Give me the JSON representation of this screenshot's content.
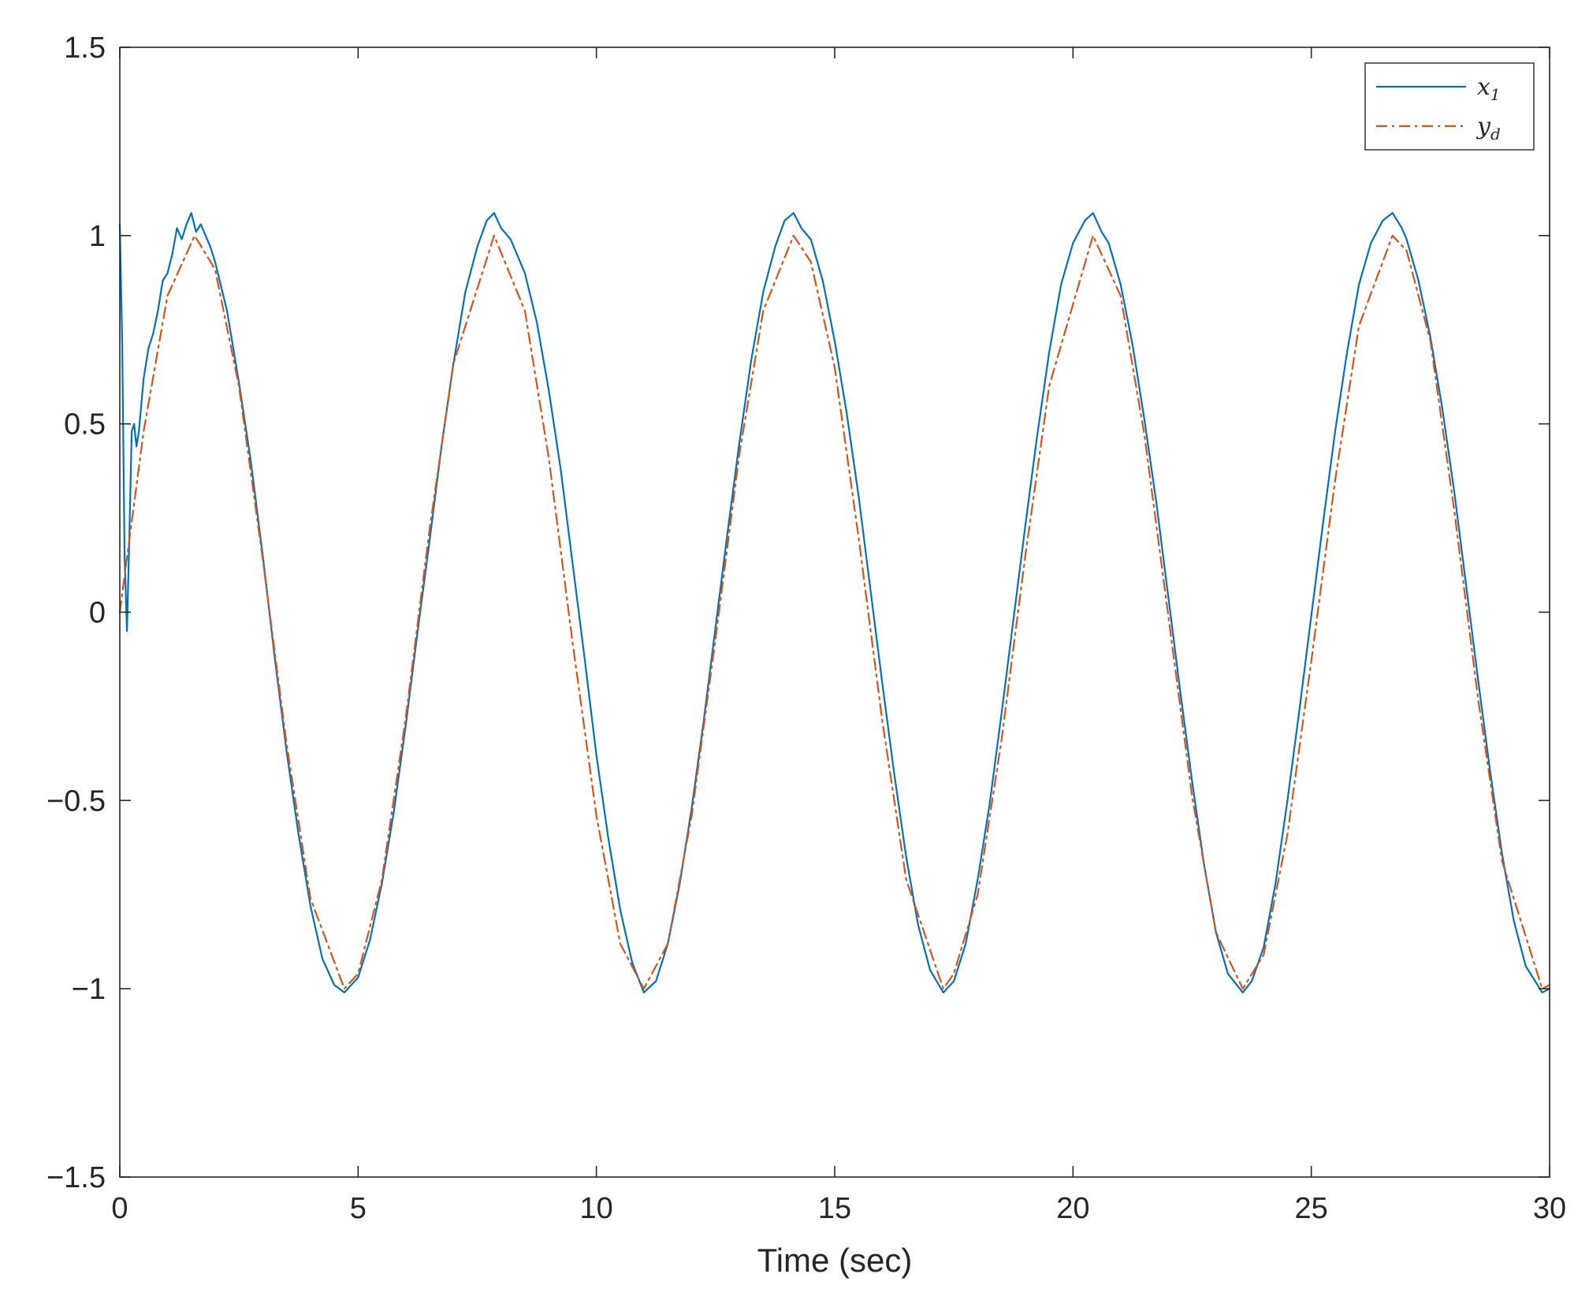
{
  "chart_data": {
    "type": "line",
    "title": "",
    "xlabel": "Time (sec)",
    "ylabel": "",
    "xlim": [
      0,
      30
    ],
    "ylim": [
      -1.5,
      1.5
    ],
    "grid": false,
    "legend_position": "top-right",
    "x_ticks": [
      {
        "value": 0,
        "label": "0"
      },
      {
        "value": 5,
        "label": "5"
      },
      {
        "value": 10,
        "label": "10"
      },
      {
        "value": 15,
        "label": "15"
      },
      {
        "value": 20,
        "label": "20"
      },
      {
        "value": 25,
        "label": "25"
      },
      {
        "value": 30,
        "label": "30"
      }
    ],
    "y_ticks": [
      {
        "value": 1.5,
        "label": "1.5"
      },
      {
        "value": 1,
        "label": "1"
      },
      {
        "value": 0.5,
        "label": "0.5"
      },
      {
        "value": 0,
        "label": "0"
      },
      {
        "value": -0.5,
        "label": "−0.5"
      },
      {
        "value": -1,
        "label": "−1"
      },
      {
        "value": -1.5,
        "label": "−1.5"
      }
    ],
    "series": [
      {
        "name": "x1",
        "legend_main": "x",
        "legend_sub": "1",
        "color": "#0072BD",
        "line_style": "solid",
        "x": [
          0,
          0.05,
          0.1,
          0.15,
          0.2,
          0.25,
          0.3,
          0.35,
          0.4,
          0.5,
          0.6,
          0.7,
          0.8,
          0.9,
          1.0,
          1.1,
          1.2,
          1.3,
          1.4,
          1.5,
          1.6,
          1.7,
          1.8,
          1.9,
          2.0,
          2.25,
          2.5,
          2.75,
          3.0,
          3.25,
          3.5,
          3.75,
          4.0,
          4.25,
          4.5,
          4.712,
          5.0,
          5.25,
          5.5,
          5.75,
          6.0,
          6.25,
          6.5,
          6.75,
          7.0,
          7.25,
          7.5,
          7.7,
          7.854,
          8.0,
          8.2,
          8.5,
          8.75,
          9.0,
          9.25,
          9.5,
          9.75,
          10.0,
          10.25,
          10.5,
          10.75,
          10.996,
          11.25,
          11.5,
          11.75,
          12.0,
          12.25,
          12.5,
          12.75,
          13.0,
          13.25,
          13.5,
          13.75,
          13.95,
          14.137,
          14.3,
          14.5,
          14.75,
          15.0,
          15.25,
          15.5,
          15.75,
          16.0,
          16.25,
          16.5,
          16.75,
          17.0,
          17.279,
          17.5,
          17.75,
          18.0,
          18.25,
          18.5,
          18.75,
          19.0,
          19.25,
          19.5,
          19.75,
          20.0,
          20.25,
          20.421,
          20.6,
          20.75,
          21.0,
          21.25,
          21.5,
          21.75,
          22.0,
          22.25,
          22.5,
          22.75,
          23.0,
          23.25,
          23.562,
          23.75,
          24.0,
          24.25,
          24.5,
          24.75,
          25.0,
          25.25,
          25.5,
          25.75,
          26.0,
          26.25,
          26.5,
          26.704,
          26.9,
          27.0,
          27.25,
          27.5,
          27.75,
          28.0,
          28.25,
          28.5,
          28.75,
          29.0,
          29.25,
          29.5,
          29.846,
          30.0
        ],
        "y": [
          1.03,
          0.72,
          0.15,
          -0.05,
          0.2,
          0.48,
          0.5,
          0.44,
          0.48,
          0.62,
          0.7,
          0.74,
          0.8,
          0.88,
          0.9,
          0.95,
          1.02,
          0.99,
          1.03,
          1.06,
          1.01,
          1.03,
          1.0,
          0.97,
          0.93,
          0.8,
          0.61,
          0.4,
          0.15,
          -0.12,
          -0.37,
          -0.59,
          -0.78,
          -0.92,
          -0.99,
          -1.01,
          -0.97,
          -0.87,
          -0.72,
          -0.53,
          -0.3,
          -0.05,
          0.19,
          0.44,
          0.66,
          0.85,
          0.97,
          1.04,
          1.06,
          1.02,
          0.99,
          0.9,
          0.77,
          0.59,
          0.38,
          0.13,
          -0.12,
          -0.38,
          -0.6,
          -0.79,
          -0.93,
          -1.01,
          -0.98,
          -0.88,
          -0.72,
          -0.52,
          -0.29,
          -0.04,
          0.21,
          0.45,
          0.67,
          0.85,
          0.97,
          1.04,
          1.06,
          1.02,
          0.99,
          0.88,
          0.72,
          0.53,
          0.31,
          0.06,
          -0.19,
          -0.43,
          -0.65,
          -0.83,
          -0.95,
          -1.01,
          -0.98,
          -0.88,
          -0.71,
          -0.51,
          -0.27,
          -0.02,
          0.23,
          0.47,
          0.69,
          0.87,
          0.98,
          1.04,
          1.06,
          1.01,
          0.98,
          0.87,
          0.71,
          0.51,
          0.29,
          0.04,
          -0.21,
          -0.45,
          -0.67,
          -0.85,
          -0.96,
          -1.01,
          -0.98,
          -0.89,
          -0.72,
          -0.5,
          -0.26,
          -0.01,
          0.24,
          0.48,
          0.69,
          0.87,
          0.98,
          1.04,
          1.06,
          1.02,
          0.99,
          0.88,
          0.73,
          0.54,
          0.32,
          0.07,
          -0.18,
          -0.42,
          -0.64,
          -0.82,
          -0.94,
          -1.01,
          -1.0
        ]
      },
      {
        "name": "yd",
        "legend_main": "y",
        "legend_sub": "d",
        "color": "#D95319",
        "line_style": "dash-dot",
        "function_samples": "sin(t)",
        "x": [
          0,
          0.5,
          1.0,
          1.5708,
          2.0,
          2.5,
          3.0,
          3.5,
          4.0,
          4.7124,
          5.0,
          5.5,
          6.0,
          6.5,
          7.0,
          7.854,
          8.5,
          9.0,
          9.5,
          10.0,
          10.5,
          10.9956,
          11.5,
          12.0,
          12.5,
          13.0,
          13.5,
          14.1372,
          14.5,
          15.0,
          15.5,
          16.0,
          16.5,
          17.2788,
          17.5,
          18.0,
          18.5,
          19.0,
          19.5,
          20.4204,
          21.0,
          21.5,
          22.0,
          22.5,
          23.0,
          23.5619,
          24.0,
          24.5,
          25.0,
          25.5,
          26.0,
          26.7035,
          27.0,
          27.5,
          28.0,
          28.5,
          29.0,
          29.8451,
          30.0
        ],
        "y": [
          0.0,
          0.48,
          0.84,
          1.0,
          0.91,
          0.6,
          0.14,
          -0.35,
          -0.76,
          -1.0,
          -0.96,
          -0.71,
          -0.28,
          0.22,
          0.66,
          1.0,
          0.8,
          0.41,
          -0.08,
          -0.54,
          -0.88,
          -1.0,
          -0.88,
          -0.54,
          -0.07,
          0.42,
          0.8,
          1.0,
          0.93,
          0.65,
          0.2,
          -0.29,
          -0.71,
          -1.0,
          -0.96,
          -0.75,
          -0.34,
          0.15,
          0.6,
          1.0,
          0.84,
          0.47,
          -0.01,
          -0.49,
          -0.85,
          -1.0,
          -0.91,
          -0.59,
          -0.13,
          0.35,
          0.76,
          1.0,
          0.96,
          0.72,
          0.27,
          -0.23,
          -0.66,
          -1.0,
          -0.99
        ]
      }
    ]
  }
}
